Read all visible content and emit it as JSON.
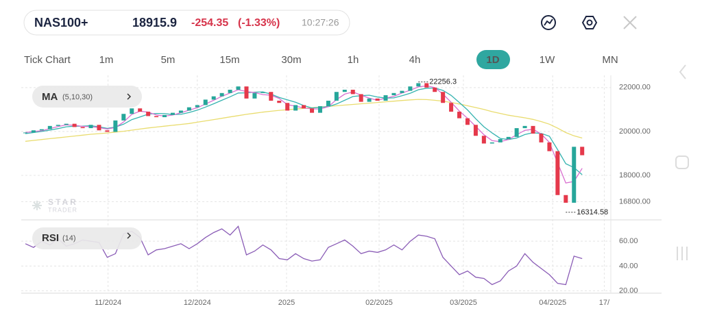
{
  "header": {
    "symbol": "NAS100+",
    "price": "18915.9",
    "change": "-254.35",
    "change_pct": "(-1.33%)",
    "time": "10:27:26"
  },
  "timeframes": [
    {
      "label": "Tick Chart"
    },
    {
      "label": "1m"
    },
    {
      "label": "5m"
    },
    {
      "label": "15m"
    },
    {
      "label": "30m"
    },
    {
      "label": "1h"
    },
    {
      "label": "4h"
    },
    {
      "label": "1D",
      "active": true
    },
    {
      "label": "1W"
    },
    {
      "label": "MN"
    }
  ],
  "indicators": {
    "ma": {
      "label": "MA",
      "params": "(5,10,30)"
    },
    "rsi": {
      "label": "RSI",
      "params": "(14)"
    }
  },
  "watermark": {
    "line1": "STAR",
    "line2": "TRADER"
  },
  "chart_data": [
    {
      "type": "candlestick",
      "up_color": "#26a69a",
      "down_color": "#e5394b",
      "grid": true,
      "xlim": [
        -0.5,
        71.5
      ],
      "ylim": [
        16000,
        22400
      ],
      "yticks": [
        {
          "value": 22000,
          "label": "22000.00"
        },
        {
          "value": 20000,
          "label": "20000.00"
        },
        {
          "value": 18000,
          "label": "18000.00"
        },
        {
          "value": 16800,
          "label": "16800.00"
        }
      ],
      "high": {
        "value": 22256.3,
        "label": "22256.3"
      },
      "low": {
        "value": 16314.58,
        "label": "16314.58"
      },
      "close": [
        19950,
        20050,
        20100,
        20250,
        20300,
        20350,
        20200,
        20150,
        20300,
        20050,
        19980,
        20500,
        20800,
        21050,
        20900,
        20700,
        20650,
        20750,
        20850,
        20950,
        21100,
        21200,
        21450,
        21600,
        21750,
        21900,
        22050,
        21500,
        21750,
        21800,
        21400,
        21300,
        20950,
        21200,
        21050,
        20850,
        21150,
        21400,
        21800,
        21900,
        21700,
        21350,
        21500,
        21400,
        21650,
        21750,
        21850,
        22050,
        22200,
        22000,
        21800,
        21300,
        20900,
        20600,
        20300,
        19800,
        19450,
        19500,
        19650,
        19750,
        20150,
        20250,
        19900,
        19500,
        19100,
        17100,
        16750,
        19300,
        18916
      ],
      "series": [
        {
          "color": "#d96fd0",
          "values": [
            19950,
            20000,
            20030,
            20130,
            20220,
            20300,
            20280,
            20230,
            20220,
            20170,
            20110,
            20180,
            20430,
            20780,
            20920,
            20880,
            20750,
            20700,
            20750,
            20850,
            20970,
            21080,
            21250,
            21420,
            21600,
            21750,
            21900,
            21820,
            21770,
            21680,
            21650,
            21500,
            21220,
            21150,
            21070,
            21030,
            21020,
            21130,
            21450,
            21700,
            21800,
            21650,
            21520,
            21420,
            21520,
            21600,
            21750,
            21880,
            22030,
            22080,
            22000,
            21700,
            21330,
            20930,
            20600,
            20230,
            19850,
            19580,
            19530,
            19630,
            19850,
            20050,
            20100,
            19880,
            19500,
            18570,
            17650,
            17720,
            18320
          ]
        },
        {
          "color": "#35b3b0",
          "values": [
            19900,
            19950,
            20000,
            20060,
            20130,
            20210,
            20240,
            20240,
            20260,
            20210,
            20140,
            20200,
            20330,
            20540,
            20660,
            20790,
            20820,
            20810,
            20770,
            20780,
            20860,
            20970,
            21110,
            21260,
            21420,
            21580,
            21750,
            21760,
            21790,
            21800,
            21700,
            21550,
            21440,
            21330,
            21180,
            21070,
            21100,
            21130,
            21250,
            21420,
            21590,
            21630,
            21650,
            21570,
            21520,
            21530,
            21630,
            21740,
            21900,
            21970,
            21980,
            21870,
            21640,
            21320,
            20980,
            20580,
            20210,
            19930,
            19680,
            19630,
            19700,
            19860,
            19940,
            19910,
            19780,
            19170,
            18530,
            18350,
            18030
          ]
        },
        {
          "color": "#e9dc6e",
          "values": [
            19550,
            19590,
            19630,
            19670,
            19710,
            19750,
            19790,
            19830,
            19870,
            19900,
            19930,
            19970,
            20010,
            20060,
            20110,
            20160,
            20200,
            20240,
            20280,
            20320,
            20360,
            20420,
            20480,
            20540,
            20600,
            20660,
            20720,
            20780,
            20830,
            20880,
            20920,
            20960,
            20990,
            21020,
            21050,
            21080,
            21110,
            21140,
            21170,
            21200,
            21230,
            21260,
            21290,
            21320,
            21350,
            21380,
            21410,
            21440,
            21460,
            21450,
            21420,
            21380,
            21320,
            21250,
            21170,
            21090,
            21000,
            20900,
            20820,
            20740,
            20680,
            20620,
            20550,
            20450,
            20330,
            20150,
            19950,
            19800,
            19700
          ]
        }
      ]
    },
    {
      "type": "line",
      "color": "#8a5cb6",
      "grid": true,
      "xlim": [
        -0.5,
        71.5
      ],
      "ylim": [
        17,
        75
      ],
      "yticks": [
        {
          "value": 60,
          "label": "60.00"
        },
        {
          "value": 40,
          "label": "40.00"
        },
        {
          "value": 20,
          "label": "20.00"
        }
      ],
      "xticks": [
        {
          "value": 10.1,
          "label": "11/2024"
        },
        {
          "value": 21,
          "label": "12/2024"
        },
        {
          "value": 31.9,
          "label": "2025"
        },
        {
          "value": 43.2,
          "label": "02/2025"
        },
        {
          "value": 53.5,
          "label": "03/2025"
        },
        {
          "value": 64.4,
          "label": "04/2025"
        },
        {
          "value": 70.7,
          "label": "17/"
        }
      ],
      "values": [
        58,
        55,
        60,
        57,
        62,
        56,
        58,
        61,
        60,
        59,
        47,
        50,
        66,
        68,
        63,
        49,
        53,
        54,
        56,
        58,
        54,
        58,
        63,
        67,
        70,
        65,
        72,
        49,
        52,
        57,
        53,
        46,
        45,
        50,
        46,
        44,
        45,
        55,
        58,
        61,
        56,
        50,
        52,
        51,
        53,
        57,
        53,
        60,
        65,
        64,
        62,
        47,
        40,
        33,
        36,
        31,
        30,
        25,
        28,
        36,
        40,
        50,
        43,
        38,
        33,
        26,
        25,
        48,
        46
      ]
    }
  ]
}
